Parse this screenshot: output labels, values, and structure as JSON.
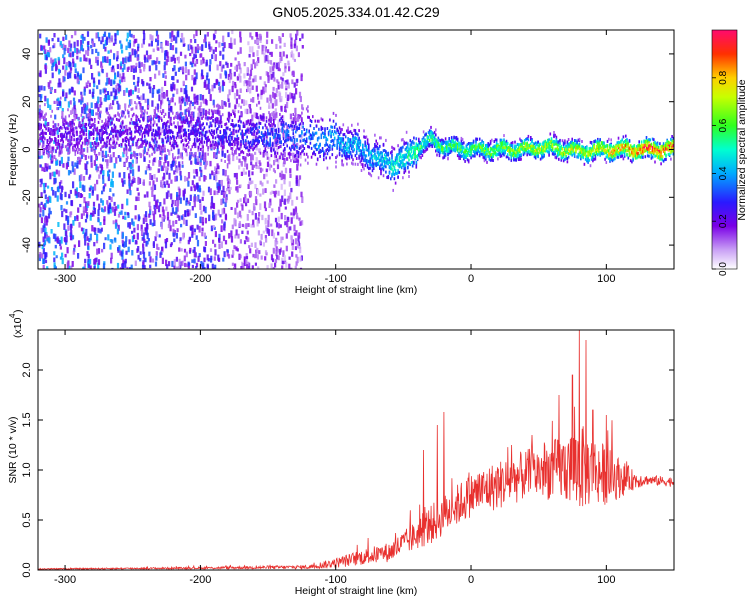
{
  "title": "GN05.2025.334.01.42.C29",
  "colors": {
    "snr_line": "#e8302e",
    "axis": "#000000",
    "background": "#ffffff"
  },
  "chart_data": [
    {
      "type": "heatmap",
      "xlabel": "Height of straight line (km)",
      "ylabel": "Frequency (Hz)",
      "xlim": [
        -320,
        150
      ],
      "ylim": [
        -50,
        50
      ],
      "xticks": [
        -300,
        -200,
        -100,
        0,
        100
      ],
      "xtick_labels": [
        "-300",
        "-200",
        "-100",
        "0",
        "100"
      ],
      "yticks": [
        -40,
        -20,
        0,
        20,
        40
      ],
      "ytick_labels": [
        "-40",
        "-20",
        "0",
        "20",
        "40"
      ],
      "colorbar": {
        "label": "Normalized spectral amplitude",
        "range": [
          0,
          1
        ],
        "ticks": [
          0.0,
          0.2,
          0.4,
          0.6,
          0.8
        ],
        "tick_labels": [
          "0.0",
          "0.2",
          "0.4",
          "0.6",
          "0.8"
        ],
        "colormap": "rainbow (white-violet-blue-cyan-green-yellow-red-magenta)"
      },
      "ridge_center_hz": [
        [
          -320,
          6
        ],
        [
          -250,
          7
        ],
        [
          -200,
          7
        ],
        [
          -150,
          6
        ],
        [
          -120,
          5
        ],
        [
          -100,
          4
        ],
        [
          -90,
          2
        ],
        [
          -80,
          0
        ],
        [
          -70,
          -4
        ],
        [
          -60,
          -6
        ],
        [
          -50,
          -5
        ],
        [
          -40,
          1
        ],
        [
          -30,
          4
        ],
        [
          -20,
          1
        ],
        [
          0,
          0
        ],
        [
          30,
          0
        ],
        [
          60,
          1
        ],
        [
          80,
          -1
        ],
        [
          100,
          0
        ],
        [
          120,
          0
        ],
        [
          150,
          0
        ]
      ],
      "ridge_peak_amplitude": [
        [
          -320,
          0.2
        ],
        [
          -200,
          0.25
        ],
        [
          -130,
          0.35
        ],
        [
          -100,
          0.4
        ],
        [
          -70,
          0.45
        ],
        [
          -40,
          0.55
        ],
        [
          0,
          0.6
        ],
        [
          50,
          0.7
        ],
        [
          100,
          0.75
        ],
        [
          130,
          0.95
        ],
        [
          150,
          0.9
        ]
      ]
    },
    {
      "type": "line",
      "xlabel": "Height of straight line (km)",
      "ylabel": "SNR (10 * v/v)",
      "y_scale_label": "(x10",
      "y_scale_exponent": "4",
      "xlim": [
        -320,
        150
      ],
      "ylim": [
        0,
        2.4
      ],
      "xticks": [
        -300,
        -200,
        -100,
        0,
        100
      ],
      "xtick_labels": [
        "-300",
        "-200",
        "-100",
        "0",
        "100"
      ],
      "yticks": [
        0.0,
        0.5,
        1.0,
        1.5,
        2.0
      ],
      "ytick_labels": [
        "0.0",
        "0.5",
        "1.0",
        "1.5",
        "2.0"
      ],
      "envelope": {
        "x": [
          -320,
          -200,
          -120,
          -100,
          -80,
          -60,
          -40,
          -30,
          -20,
          0,
          20,
          40,
          60,
          70,
          80,
          90,
          100,
          110,
          120,
          130,
          150
        ],
        "mean": [
          0.01,
          0.02,
          0.03,
          0.07,
          0.13,
          0.18,
          0.35,
          0.45,
          0.55,
          0.75,
          0.85,
          0.95,
          1.0,
          1.02,
          1.03,
          1.0,
          0.95,
          0.92,
          0.9,
          0.9,
          0.88
        ],
        "spread": [
          0.005,
          0.01,
          0.02,
          0.05,
          0.08,
          0.1,
          0.15,
          0.2,
          0.2,
          0.22,
          0.25,
          0.25,
          0.3,
          0.35,
          0.45,
          0.35,
          0.3,
          0.2,
          0.1,
          0.05,
          0.05
        ]
      },
      "peaks": [
        [
          -20,
          1.58
        ],
        [
          -25,
          1.45
        ],
        [
          80,
          2.42
        ],
        [
          85,
          2.3
        ],
        [
          75,
          1.95
        ],
        [
          90,
          1.6
        ],
        [
          65,
          1.75
        ],
        [
          100,
          1.55
        ],
        [
          45,
          1.35
        ],
        [
          30,
          1.25
        ],
        [
          -35,
          1.2
        ]
      ]
    }
  ]
}
